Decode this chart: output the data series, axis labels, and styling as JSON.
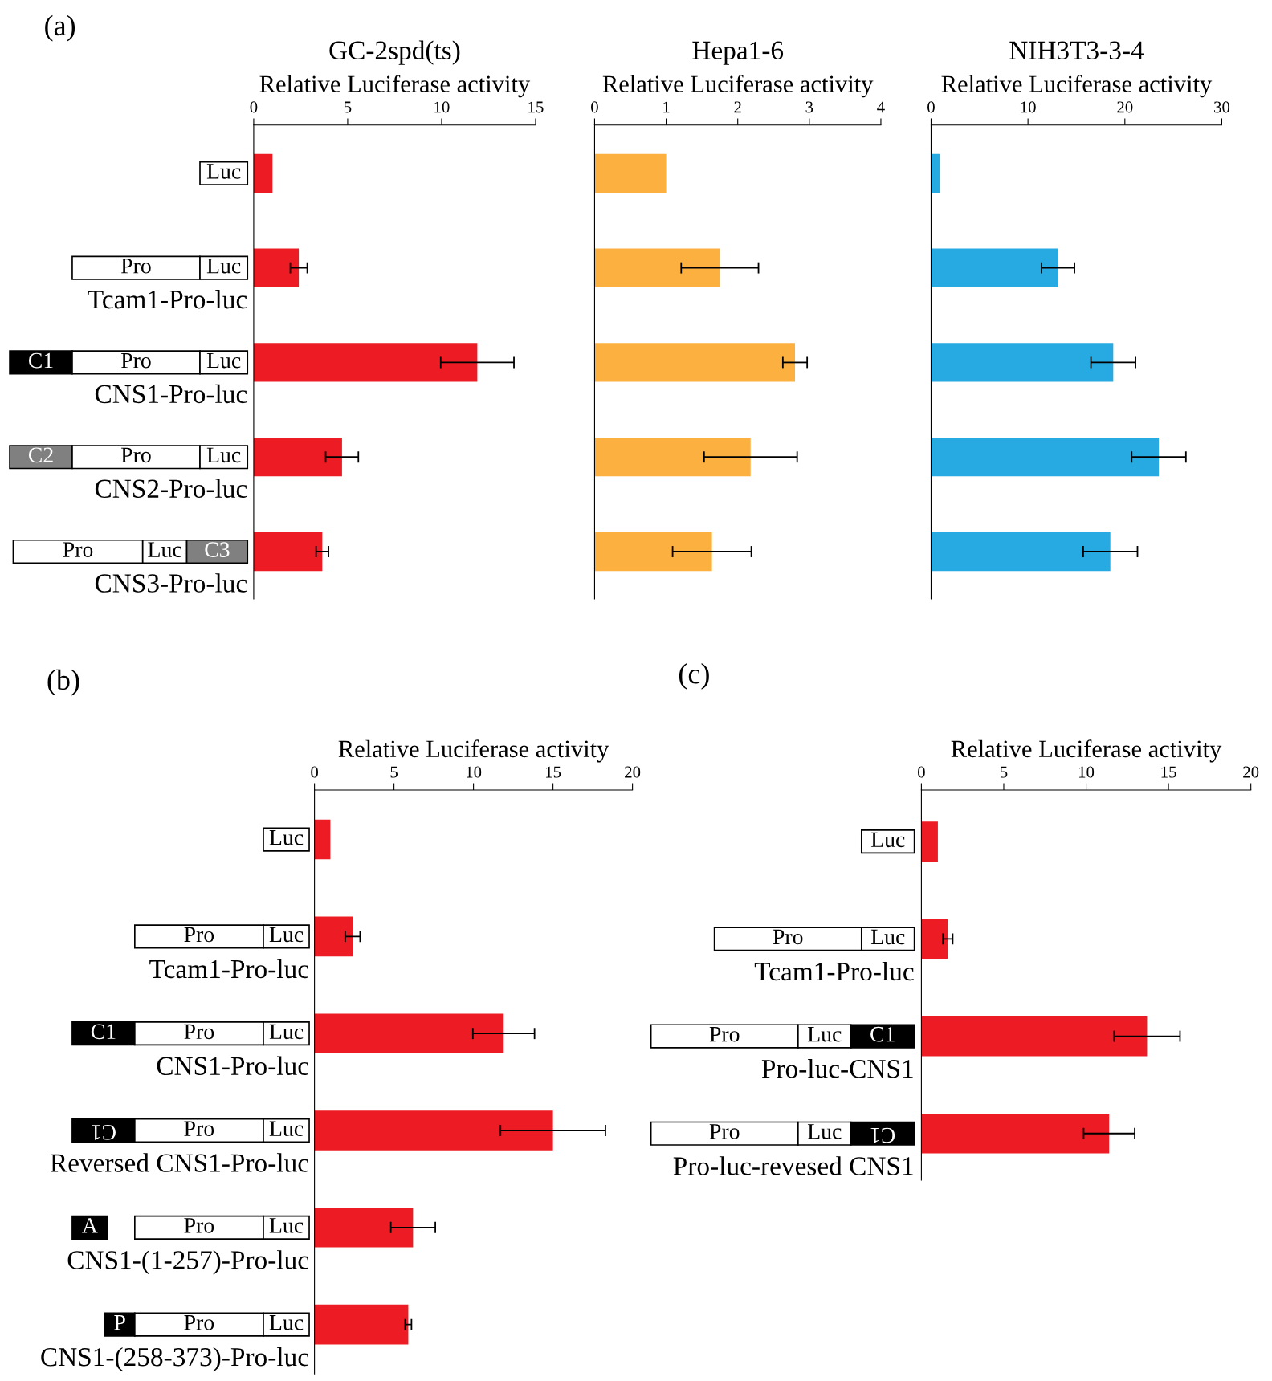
{
  "chart_data": [
    {
      "type": "bar",
      "orientation": "horizontal",
      "title": "GC-2spd(ts)",
      "xlabel": "Relative Luciferase activity",
      "categories": [
        null,
        "Tcam1-Pro-luc",
        "CNS1-Pro-luc",
        "CNS2-Pro-luc",
        "CNS3-Pro-luc"
      ],
      "values": [
        1.0,
        2.4,
        11.9,
        4.7,
        3.65
      ],
      "errors": [
        null,
        0.45,
        1.95,
        0.87,
        0.33
      ],
      "color": "#ed1c24",
      "xlim": [
        0,
        15
      ],
      "xticks": [
        0,
        5,
        10,
        15
      ],
      "grid": false,
      "annotations": [
        "(a)",
        "Luc",
        "Pro",
        "Luc",
        "C1",
        "Pro",
        "Luc",
        "C2",
        "Pro",
        "Luc",
        "Pro",
        "Luc",
        "C3"
      ]
    },
    {
      "type": "bar",
      "orientation": "horizontal",
      "title": "Hepa1-6",
      "xlabel": "Relative Luciferase activity",
      "categories": [
        null,
        null,
        null,
        null,
        null
      ],
      "values": [
        1.0,
        1.75,
        2.8,
        2.18,
        1.64
      ],
      "errors": [
        null,
        0.54,
        0.17,
        0.65,
        0.55
      ],
      "color": "#fbb040",
      "xlim": [
        0,
        4
      ],
      "xticks": [
        0,
        1,
        2,
        3,
        4
      ],
      "grid": false
    },
    {
      "type": "bar",
      "orientation": "horizontal",
      "title": "NIH3T3-3-4",
      "xlabel": "Relative Luciferase activity",
      "categories": [
        null,
        null,
        null,
        null,
        null
      ],
      "values": [
        0.9,
        13.1,
        18.8,
        23.5,
        18.5
      ],
      "errors": [
        null,
        1.7,
        2.3,
        2.8,
        2.8
      ],
      "color": "#27aae1",
      "xlim": [
        0,
        30
      ],
      "xticks": [
        0,
        10,
        20,
        30
      ],
      "grid": false
    },
    {
      "type": "bar",
      "orientation": "horizontal",
      "xlabel": "Relative Luciferase activity",
      "categories": [
        null,
        "Tcam1-Pro-luc",
        "CNS1-Pro-luc",
        "Reversed CNS1-Pro-luc",
        "CNS1-(1-257)-Pro-luc",
        "CNS1-(258-373)-Pro-luc"
      ],
      "values": [
        1.0,
        2.4,
        11.9,
        15.0,
        6.2,
        5.9
      ],
      "errors": [
        null,
        0.47,
        1.94,
        3.3,
        1.4,
        0.2
      ],
      "color": "#ed1c24",
      "xlim": [
        0,
        20
      ],
      "xticks": [
        0,
        5,
        10,
        15,
        20
      ],
      "grid": false,
      "annotations": [
        "(b)",
        "Luc",
        "Pro",
        "Luc",
        "C1",
        "Pro",
        "Luc",
        "C1",
        "Pro",
        "Luc",
        "A",
        "Pro",
        "Luc",
        "P",
        "Pro",
        "Luc"
      ]
    },
    {
      "type": "bar",
      "orientation": "horizontal",
      "xlabel": "Relative Luciferase activity",
      "categories": [
        null,
        "Tcam1-Pro-luc",
        "Pro-luc-CNS1",
        "Pro-luc-revesed CNS1"
      ],
      "values": [
        1.0,
        1.6,
        13.7,
        11.4
      ],
      "errors": [
        null,
        0.3,
        2.0,
        1.55
      ],
      "color": "#ed1c24",
      "xlim": [
        0,
        20
      ],
      "xticks": [
        0,
        5,
        10,
        15,
        20
      ],
      "grid": false,
      "annotations": [
        "(c)",
        "Luc",
        "Pro",
        "Luc",
        "Pro",
        "Luc",
        "C1",
        "Pro",
        "Luc",
        "C1"
      ]
    }
  ]
}
